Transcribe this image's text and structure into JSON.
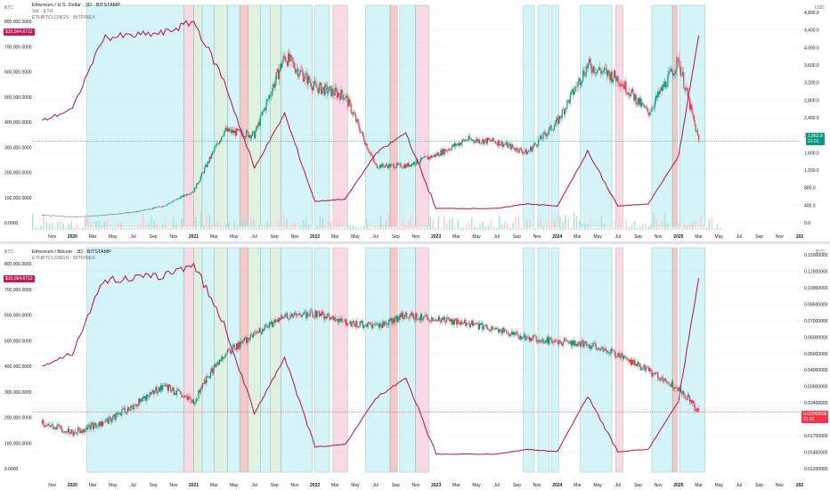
{
  "pane1": {
    "title": "Ethereum / U.S. Dollar · 3D · BITSTAMP",
    "vol_label": "Vol · ETH",
    "indicator_label": "ETHBTCLONGS · BITFINEX",
    "left_unit": "BTC",
    "right_unit": "USD",
    "left_tag": "$10,064.6712",
    "right_tag_line1": "1,862.9",
    "right_tag_line2": "21:31",
    "left_axis": [
      "800,000.0000",
      "700,000.0000",
      "600,000.0000",
      "500,000.0000",
      "400,000.0000",
      "300,000.0000",
      "200,000.0000",
      "100,000.0000",
      "0.0000"
    ],
    "right_axis": [
      "4,800.0",
      "4,400.0",
      "4,000.0",
      "3,600.0",
      "3,200.0",
      "2,800.0",
      "2,400.0",
      "2,000.0",
      "1,600.0",
      "1,200.0",
      "800.0",
      "400.0",
      "0.0"
    ]
  },
  "pane2": {
    "title": "Ethereum / Bitcoin · 3D · BITSTAMP",
    "indicator_label": "ETHBTCLONGS · BITFINEX",
    "left_unit": "BTC",
    "right_unit": "BTC",
    "left_tag": "$10,064.6712",
    "right_tag_line1": "0.02343838",
    "right_tag_line2": "21:31",
    "left_axis": [
      "800,000.0000",
      "700,000.0000",
      "600,000.0000",
      "500,000.0000",
      "400,000.0000",
      "300,000.0000",
      "200,000.0000",
      "100,000.0000",
      "0.0000"
    ],
    "right_axis": [
      "0.15000000",
      "0.12000000",
      "0.10000000",
      "0.08500000",
      "0.07000000",
      "0.06000000",
      "0.05000000",
      "0.04000000",
      "0.03000000",
      "0.02400000",
      "0.02000000",
      "0.01700000",
      "0.01450000",
      "0.01200000"
    ]
  },
  "time_axis": [
    "Nov",
    "2020",
    "Mar",
    "May",
    "Jul",
    "Sep",
    "Nov",
    "2021",
    "Mar",
    "May",
    "Jul",
    "Sep",
    "Nov",
    "2022",
    "Mar",
    "May",
    "Jul",
    "Sep",
    "Nov",
    "2023",
    "Mar",
    "May",
    "Jul",
    "Sep",
    "Nov",
    "2024",
    "Mar",
    "May",
    "Jul",
    "Sep",
    "Nov",
    "2025",
    "Mar",
    "May",
    "Jul",
    "Sep",
    "Nov",
    "202"
  ],
  "colors": {
    "up": "#089981",
    "down": "#f23645",
    "longs_line": "#b0124d",
    "band_cyan": "#b2ebf2",
    "band_green": "#c8e6c9",
    "band_red": "#ef9a9a",
    "band_pink": "#f8bbd0",
    "grid": "#f0f3fa",
    "axis_text": "#131722"
  },
  "chart_data": [
    {
      "type": "line",
      "title": "Ethereum / U.S. Dollar · 3D · BITSTAMP",
      "ylabel": "USD",
      "ylim": [
        0,
        4800
      ],
      "x": [
        "2019-10",
        "2020-01",
        "2020-04",
        "2020-07",
        "2020-10",
        "2021-01",
        "2021-04",
        "2021-07",
        "2021-10",
        "2022-01",
        "2022-04",
        "2022-07",
        "2022-10",
        "2023-01",
        "2023-04",
        "2023-07",
        "2023-10",
        "2024-01",
        "2024-04",
        "2024-07",
        "2024-10",
        "2025-01",
        "2025-03"
      ],
      "series": [
        {
          "name": "ETHUSD",
          "values": [
            180,
            130,
            170,
            240,
            380,
            730,
            2100,
            2000,
            3800,
            3100,
            2900,
            1300,
            1300,
            1550,
            1900,
            1850,
            1600,
            2300,
            3600,
            3300,
            2500,
            3700,
            1862.9
          ]
        },
        {
          "name": "ETHBTCLONGS · BITFINEX",
          "values": [
            430000,
            480000,
            780000,
            790000,
            800000,
            850000,
            600000,
            230000,
            460000,
            90000,
            100000,
            290000,
            380000,
            60000,
            60000,
            60000,
            80000,
            70000,
            300000,
            70000,
            80000,
            280000,
            790000
          ]
        }
      ]
    },
    {
      "type": "line",
      "title": "Ethereum / Bitcoin · 3D · BITSTAMP",
      "ylabel": "BTC",
      "ylim": [
        0.012,
        0.15
      ],
      "x": [
        "2019-10",
        "2020-01",
        "2020-04",
        "2020-07",
        "2020-10",
        "2021-01",
        "2021-04",
        "2021-07",
        "2021-10",
        "2022-01",
        "2022-04",
        "2022-07",
        "2022-10",
        "2023-01",
        "2023-04",
        "2023-07",
        "2023-10",
        "2024-01",
        "2024-04",
        "2024-07",
        "2024-10",
        "2025-01",
        "2025-03"
      ],
      "series": [
        {
          "name": "ETHBTC",
          "values": [
            0.0205,
            0.0185,
            0.0205,
            0.025,
            0.032,
            0.026,
            0.046,
            0.058,
            0.072,
            0.075,
            0.068,
            0.064,
            0.074,
            0.07,
            0.067,
            0.062,
            0.056,
            0.054,
            0.052,
            0.046,
            0.038,
            0.031,
            0.02343838
          ]
        },
        {
          "name": "ETHBTCLONGS · BITFINEX",
          "values": [
            430000,
            480000,
            780000,
            790000,
            800000,
            850000,
            600000,
            230000,
            460000,
            90000,
            100000,
            290000,
            380000,
            60000,
            60000,
            60000,
            80000,
            70000,
            300000,
            70000,
            80000,
            280000,
            790000
          ]
        }
      ]
    }
  ]
}
